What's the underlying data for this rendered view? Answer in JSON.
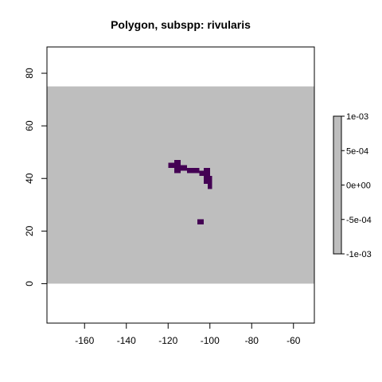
{
  "chart_data": {
    "type": "heatmap",
    "title": "Polygon, subspp: rivularis",
    "xlabel": "",
    "ylabel": "",
    "xlim": [
      -178,
      -50
    ],
    "ylim": [
      -15,
      90
    ],
    "xticks": [
      -160,
      -140,
      -120,
      -100,
      -80,
      -60
    ],
    "yticks": [
      0,
      20,
      40,
      60,
      80
    ],
    "xtick_labels": [
      "-160",
      "-140",
      "-120",
      "-100",
      "-80",
      "-60"
    ],
    "ytick_labels": [
      "0",
      "20",
      "40",
      "60",
      "80"
    ],
    "raster_extent": {
      "xmin": -178,
      "xmax": -50,
      "ymin": 0,
      "ymax": 75
    },
    "background_value": 0,
    "background_color": "#bebebe",
    "presence_color": "#440154",
    "presence_cells": [
      {
        "x": -120.0,
        "y": 44.0,
        "w": 3,
        "h": 2
      },
      {
        "x": -117.0,
        "y": 44.0,
        "w": 3,
        "h": 3
      },
      {
        "x": -117.0,
        "y": 42.0,
        "w": 3,
        "h": 2
      },
      {
        "x": -114.0,
        "y": 43.0,
        "w": 3,
        "h": 2
      },
      {
        "x": -111.0,
        "y": 42.0,
        "w": 6,
        "h": 2
      },
      {
        "x": -105.0,
        "y": 41.0,
        "w": 2,
        "h": 2
      },
      {
        "x": -103.0,
        "y": 41.0,
        "w": 3,
        "h": 3
      },
      {
        "x": -103.0,
        "y": 38.0,
        "w": 4,
        "h": 3
      },
      {
        "x": -101.0,
        "y": 36.0,
        "w": 2,
        "h": 3
      },
      {
        "x": -106.0,
        "y": 22.5,
        "w": 3,
        "h": 2
      }
    ],
    "legend": {
      "placement": "right",
      "tick_labels": [
        "1e-03",
        "5e-04",
        "0e+00",
        "-5e-04",
        "-1e-03"
      ],
      "color": "#bebebe"
    }
  }
}
